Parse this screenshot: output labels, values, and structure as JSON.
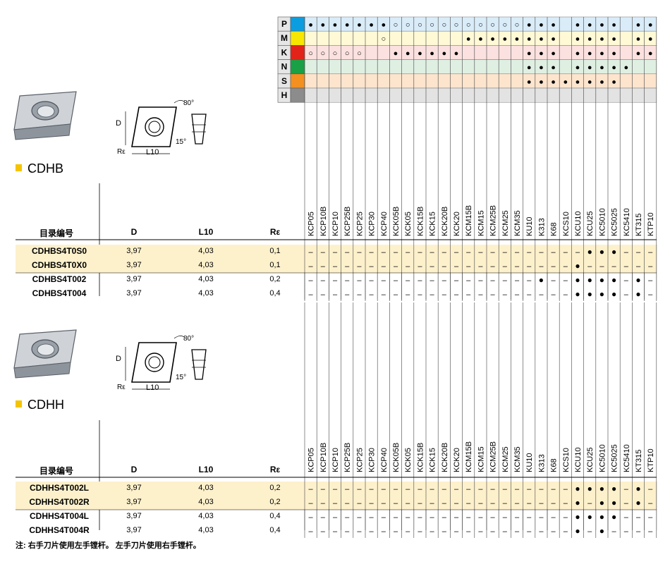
{
  "colors": {
    "P": "#0a9ee0",
    "M": "#f7e600",
    "K": "#e2231a",
    "N": "#1aa045",
    "S": "#f39020",
    "H": "#8c8c8c",
    "rowP": "#d9ecf8",
    "rowM": "#fff9d6",
    "rowK": "#fbe1df",
    "rowN": "#dff0e3",
    "rowS": "#fde4cd",
    "rowH": "#e3e3e3",
    "highlight": "#fdf1cc",
    "grade_sep": "#ffffff"
  },
  "materials": [
    "P",
    "M",
    "K",
    "N",
    "S",
    "H"
  ],
  "grades": [
    "KCP05",
    "KCP10B",
    "KCP10",
    "KCP25B",
    "KCP25",
    "KCP30",
    "KCP40",
    "KCK05B",
    "KCK05",
    "KCK15B",
    "KCK15",
    "KCK20B",
    "KCK20",
    "KCM15B",
    "KCM15",
    "KCM25B",
    "KCM25",
    "KCM35",
    "KU10",
    "K313",
    "K68",
    "KCS10",
    "KCU10",
    "KCU25",
    "KC5010",
    "KC5025",
    "KC5410",
    "KT315",
    "KTP10"
  ],
  "matrix": {
    "P": [
      "●",
      "●",
      "●",
      "●",
      "●",
      "●",
      "●",
      "○",
      "○",
      "○",
      "○",
      "○",
      "○",
      "○",
      "○",
      "○",
      "○",
      "○",
      "●",
      "●",
      "●",
      "",
      "●",
      "●",
      "●",
      "●",
      "",
      "●",
      "●"
    ],
    "M": [
      "",
      "",
      "",
      "",
      "",
      "",
      "○",
      "",
      "",
      "",
      "",
      "",
      "",
      "●",
      "●",
      "●",
      "●",
      "●",
      "●",
      "●",
      "●",
      "",
      "●",
      "●",
      "●",
      "●",
      "",
      "●",
      "●"
    ],
    "K": [
      "○",
      "○",
      "○",
      "○",
      "○",
      "",
      "",
      "●",
      "●",
      "●",
      "●",
      "●",
      "●",
      "",
      "",
      "",
      "",
      "",
      "●",
      "●",
      "●",
      "",
      "●",
      "●",
      "●",
      "●",
      "",
      "●",
      "●"
    ],
    "N": [
      "",
      "",
      "",
      "",
      "",
      "",
      "",
      "",
      "",
      "",
      "",
      "",
      "",
      "",
      "",
      "",
      "",
      "",
      "●",
      "●",
      "●",
      "",
      "●",
      "●",
      "●",
      "●",
      "●",
      "",
      ""
    ],
    "S": [
      "",
      "",
      "",
      "",
      "",
      "",
      "",
      "",
      "",
      "",
      "",
      "",
      "",
      "",
      "",
      "",
      "",
      "",
      "●",
      "●",
      "●",
      "●",
      "●",
      "●",
      "●",
      "●",
      "",
      "",
      ""
    ],
    "H": [
      "",
      "",
      "",
      "",
      "",
      "",
      "",
      "",
      "",
      "",
      "",
      "",
      "",
      "",
      "",
      "",
      "",
      "",
      "",
      "",
      "",
      "",
      "",
      "",
      "",
      "",
      "",
      "",
      ""
    ]
  },
  "sections": [
    {
      "title": "CDHB",
      "headers": {
        "code": "目录编号",
        "d": "D",
        "l10": "L10",
        "re": "Rε"
      },
      "diagram": {
        "angle80": "80°",
        "angle15": "15°",
        "d": "D",
        "l10": "L10",
        "re": "Rε"
      },
      "rows": [
        {
          "code": "CDHBS4T0S0",
          "d": "3,97",
          "l10": "4,03",
          "re": "0,1",
          "hl": true,
          "marks": [
            "–",
            "–",
            "–",
            "–",
            "–",
            "–",
            "–",
            "–",
            "–",
            "–",
            "–",
            "–",
            "–",
            "–",
            "–",
            "–",
            "–",
            "–",
            "–",
            "–",
            "–",
            "–",
            "–",
            "●",
            "●",
            "●",
            "–",
            "–",
            "–"
          ]
        },
        {
          "code": "CDHBS4T0X0",
          "d": "3,97",
          "l10": "4,03",
          "re": "0,1",
          "hl": true,
          "marks": [
            "–",
            "–",
            "–",
            "–",
            "–",
            "–",
            "–",
            "–",
            "–",
            "–",
            "–",
            "–",
            "–",
            "–",
            "–",
            "–",
            "–",
            "–",
            "–",
            "–",
            "–",
            "–",
            "●",
            "–",
            "–",
            "–",
            "–",
            "–",
            "–"
          ]
        },
        {
          "code": "CDHBS4T002",
          "d": "3,97",
          "l10": "4,03",
          "re": "0,2",
          "hl": false,
          "marks": [
            "–",
            "–",
            "–",
            "–",
            "–",
            "–",
            "–",
            "–",
            "–",
            "–",
            "–",
            "–",
            "–",
            "–",
            "–",
            "–",
            "–",
            "–",
            "–",
            "●",
            "–",
            "–",
            "●",
            "●",
            "●",
            "●",
            "–",
            "●",
            "–"
          ]
        },
        {
          "code": "CDHBS4T004",
          "d": "3,97",
          "l10": "4,03",
          "re": "0,4",
          "hl": false,
          "marks": [
            "–",
            "–",
            "–",
            "–",
            "–",
            "–",
            "–",
            "–",
            "–",
            "–",
            "–",
            "–",
            "–",
            "–",
            "–",
            "–",
            "–",
            "–",
            "–",
            "–",
            "–",
            "–",
            "●",
            "●",
            "●",
            "●",
            "–",
            "●",
            "–"
          ]
        }
      ]
    },
    {
      "title": "CDHH",
      "headers": {
        "code": "目录编号",
        "d": "D",
        "l10": "L10",
        "re": "Rε"
      },
      "diagram": {
        "angle80": "80°",
        "angle15": "15°",
        "d": "D",
        "l10": "L10",
        "re": "Rε"
      },
      "rows": [
        {
          "code": "CDHHS4T002L",
          "d": "3,97",
          "l10": "4,03",
          "re": "0,2",
          "hl": true,
          "marks": [
            "–",
            "–",
            "–",
            "–",
            "–",
            "–",
            "–",
            "–",
            "–",
            "–",
            "–",
            "–",
            "–",
            "–",
            "–",
            "–",
            "–",
            "–",
            "–",
            "–",
            "–",
            "–",
            "●",
            "●",
            "●",
            "●",
            "–",
            "●",
            "–"
          ]
        },
        {
          "code": "CDHHS4T002R",
          "d": "3,97",
          "l10": "4,03",
          "re": "0,2",
          "hl": true,
          "marks": [
            "–",
            "–",
            "–",
            "–",
            "–",
            "–",
            "–",
            "–",
            "–",
            "–",
            "–",
            "–",
            "–",
            "–",
            "–",
            "–",
            "–",
            "–",
            "–",
            "–",
            "–",
            "–",
            "●",
            "–",
            "●",
            "●",
            "–",
            "●",
            "–"
          ]
        },
        {
          "code": "CDHHS4T004L",
          "d": "3,97",
          "l10": "4,03",
          "re": "0,4",
          "hl": false,
          "marks": [
            "–",
            "–",
            "–",
            "–",
            "–",
            "–",
            "–",
            "–",
            "–",
            "–",
            "–",
            "–",
            "–",
            "–",
            "–",
            "–",
            "–",
            "–",
            "–",
            "–",
            "–",
            "–",
            "●",
            "●",
            "●",
            "●",
            "–",
            "–",
            "–"
          ]
        },
        {
          "code": "CDHHS4T004R",
          "d": "3,97",
          "l10": "4,03",
          "re": "0,4",
          "hl": false,
          "marks": [
            "–",
            "–",
            "–",
            "–",
            "–",
            "–",
            "–",
            "–",
            "–",
            "–",
            "–",
            "–",
            "–",
            "–",
            "–",
            "–",
            "–",
            "–",
            "–",
            "–",
            "–",
            "–",
            "●",
            "–",
            "●",
            "–",
            "–",
            "–",
            "–"
          ]
        }
      ]
    }
  ],
  "footnote": "注:  右手刀片使用左手镗杆。 左手刀片使用右手镗杆。"
}
